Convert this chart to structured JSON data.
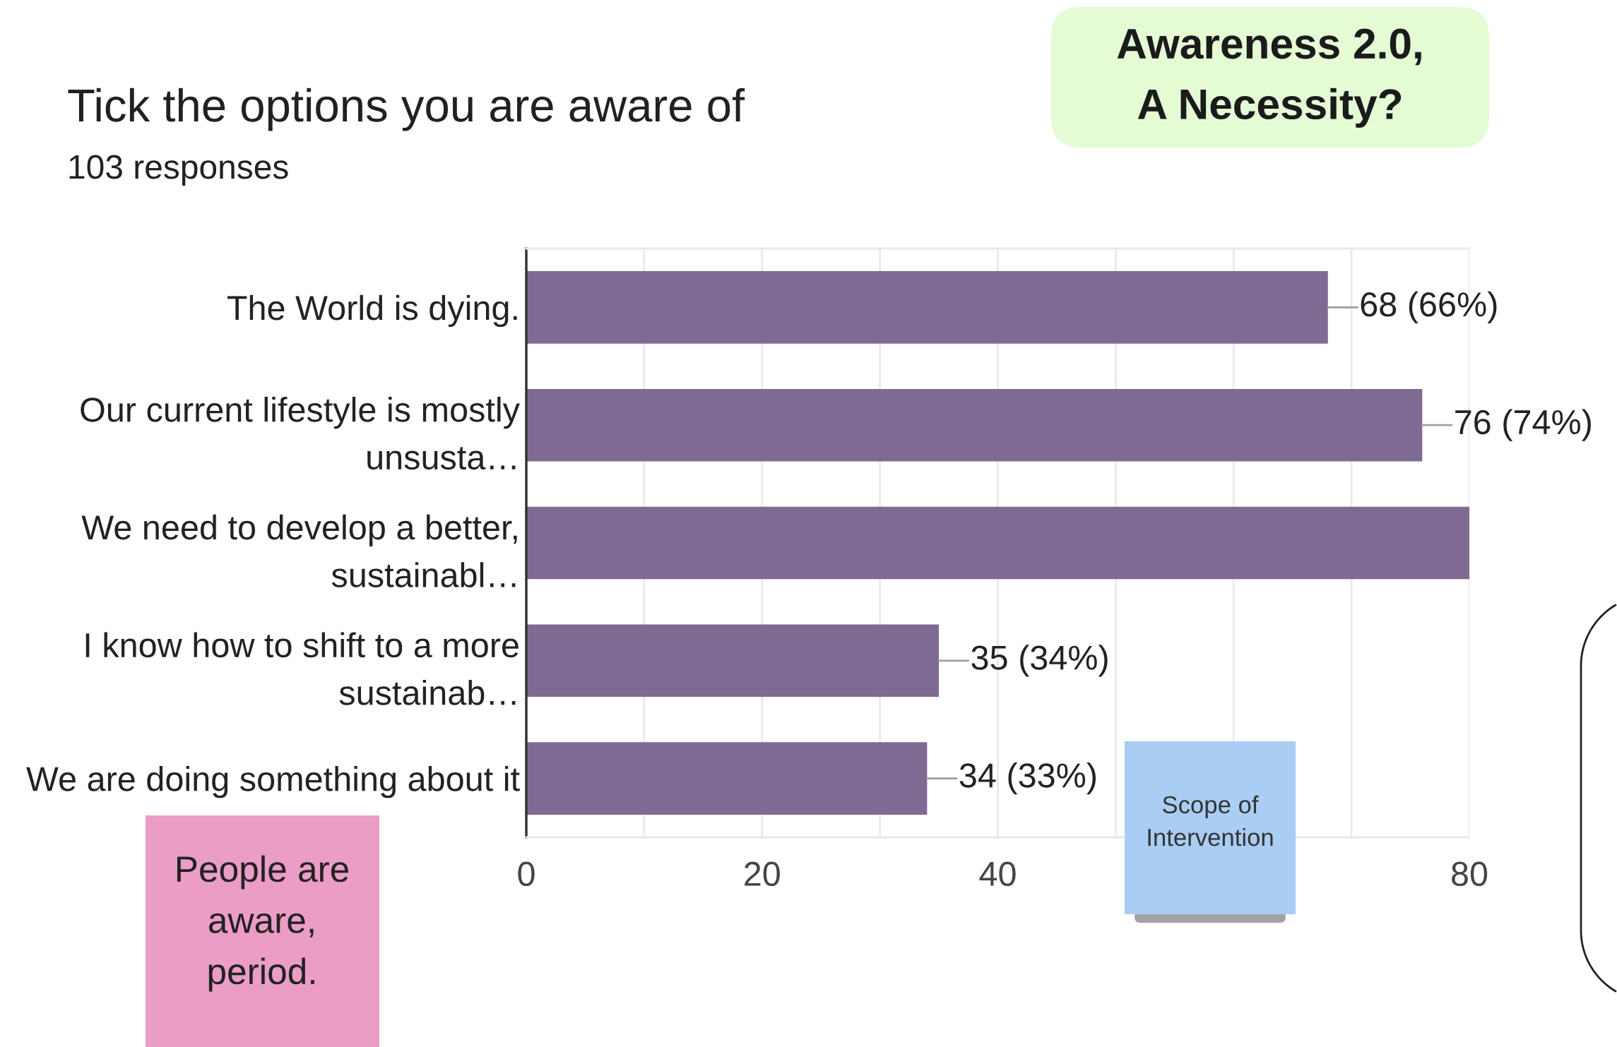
{
  "chart_data": {
    "type": "bar",
    "orientation": "horizontal",
    "title": "Tick the options you are aware of",
    "subtitle": "103 responses",
    "categories": [
      "The World is dying.",
      "Our current lifestyle is mostly\nunsusta…",
      "We need to develop a better,\nsustainabl…",
      "I know how to shift to a more\nsustainab…",
      "We are doing something about it"
    ],
    "values": [
      68,
      76,
      80,
      35,
      34
    ],
    "color": "#7f6a93",
    "value_labels": [
      "68 (66%)",
      "76 (74%)",
      null,
      "35 (34%)",
      "34 (33%)"
    ],
    "xlim": [
      0,
      80
    ],
    "xticks": [
      0,
      {
        "value": 10,
        "label": null
      },
      20,
      {
        "value": 30,
        "label": null
      },
      40,
      {
        "value": 50,
        "label": null
      },
      {
        "value": 60,
        "label": null
      },
      {
        "value": 70,
        "label": null
      },
      80
    ],
    "grid": "x",
    "annotations": [
      "Awareness 2.0,\nA Necessity?",
      "People are\naware,\nperiod.",
      "Scope of\nIntervention"
    ]
  }
}
